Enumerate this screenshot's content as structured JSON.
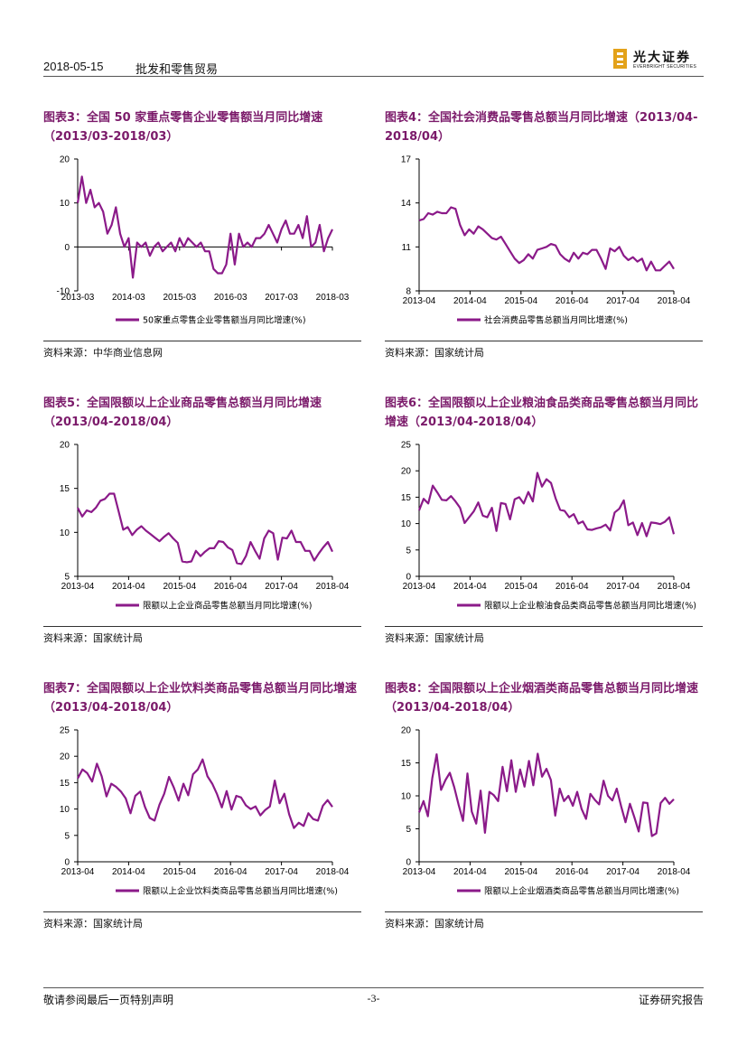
{
  "header": {
    "date": "2018-05-15",
    "sector": "批发和零售贸易",
    "brand_cn": "光大证券",
    "brand_en": "EVERBRIGHT SECURITIES"
  },
  "footer": {
    "disclaimer": "敬请参阅最后一页特别声明",
    "page": "-3-",
    "doc_type": "证券研究报告"
  },
  "colors": {
    "line": "#8b1a89",
    "title": "#7b1a6a",
    "logo_gold": "#e3a21a"
  },
  "figures": [
    {
      "title": "图表3：全国 50 家重点零售企业零售额当月同比增速（2013/03-2018/03）",
      "source": "资料来源：中华商业信息网",
      "chart_data": {
        "type": "line",
        "series_name": "50家重点零售企业零售额当月同比增速(%)",
        "ylim": [
          -10,
          20
        ],
        "yticks": [
          "-10",
          "0",
          "10",
          "20"
        ],
        "xticks": [
          "2013-03",
          "2014-03",
          "2015-03",
          "2016-03",
          "2017-03",
          "2018-03"
        ],
        "values": [
          10,
          16,
          10,
          13,
          9,
          10,
          8,
          3,
          5,
          9,
          3,
          0,
          2,
          -7,
          1,
          0,
          1,
          -2,
          0,
          1,
          -1,
          0,
          1,
          -1,
          2,
          0,
          2,
          1,
          0,
          1,
          -1,
          -1,
          -5,
          -6,
          -6,
          -4,
          3,
          -4,
          3,
          0,
          1,
          0,
          2,
          2,
          3,
          5,
          3,
          1,
          4,
          6,
          3,
          3,
          5,
          2,
          7,
          0,
          1,
          5,
          -1,
          2,
          4
        ]
      }
    },
    {
      "title": "图表4：全国社会消费品零售总额当月同比增速（2013/04-2018/04）",
      "source": "资料来源：国家统计局",
      "chart_data": {
        "type": "line",
        "series_name": "社会消费品零售总额当月同比增速(%)",
        "ylim": [
          8,
          17
        ],
        "yticks": [
          "8",
          "11",
          "14",
          "17"
        ],
        "xticks": [
          "2013-04",
          "2014-04",
          "2015-04",
          "2016-04",
          "2017-04",
          "2018-04"
        ],
        "values": [
          12.8,
          12.9,
          13.3,
          13.2,
          13.4,
          13.3,
          13.3,
          13.7,
          13.6,
          12.5,
          11.8,
          12.2,
          11.9,
          12.4,
          12.2,
          11.9,
          11.6,
          11.5,
          11.7,
          11.2,
          10.7,
          10.2,
          9.9,
          10.1,
          10.5,
          10.2,
          10.8,
          10.9,
          11.0,
          11.2,
          11.1,
          10.5,
          10.2,
          10.0,
          10.6,
          10.2,
          10.6,
          10.5,
          10.8,
          10.8,
          10.2,
          9.5,
          10.9,
          10.7,
          11.0,
          10.4,
          10.1,
          10.3,
          10.0,
          10.2,
          9.4,
          10.0,
          9.4,
          9.4,
          9.7,
          10.0,
          9.5
        ]
      }
    },
    {
      "title": "图表5：全国限额以上企业商品零售总额当月同比增速（2013/04-2018/04）",
      "source": "资料来源：国家统计局",
      "chart_data": {
        "type": "line",
        "series_name": "限额以上企业商品零售总额当月同比增速(%)",
        "ylim": [
          5,
          20
        ],
        "yticks": [
          "5",
          "10",
          "15",
          "20"
        ],
        "xticks": [
          "2013-04",
          "2014-04",
          "2015-04",
          "2016-04",
          "2017-04",
          "2018-04"
        ],
        "values": [
          12.8,
          11.8,
          12.5,
          12.3,
          12.8,
          13.6,
          13.8,
          14.4,
          14.4,
          12.4,
          10.3,
          10.6,
          9.7,
          10.3,
          10.7,
          10.2,
          9.8,
          9.4,
          9.0,
          9.5,
          9.9,
          9.3,
          8.8,
          6.7,
          6.6,
          6.7,
          7.9,
          7.3,
          7.8,
          8.2,
          8.2,
          9.0,
          8.9,
          8.3,
          8.0,
          6.5,
          6.4,
          7.3,
          8.9,
          7.9,
          7.0,
          9.3,
          10.2,
          9.9,
          6.9,
          9.4,
          9.3,
          10.2,
          8.9,
          8.9,
          7.9,
          7.9,
          6.8,
          7.6,
          8.3,
          8.9,
          7.8
        ]
      }
    },
    {
      "title": "图表6：全国限额以上企业粮油食品类商品零售总额当月同比增速（2013/04-2018/04）",
      "source": "资料来源：国家统计局",
      "chart_data": {
        "type": "line",
        "series_name": "限额以上企业粮油食品类商品零售总额当月同比增速(%)",
        "ylim": [
          0,
          25
        ],
        "yticks": [
          "0",
          "5",
          "10",
          "15",
          "20",
          "25"
        ],
        "xticks": [
          "2013-04",
          "2014-04",
          "2015-04",
          "2016-04",
          "2017-04",
          "2018-04"
        ],
        "values": [
          12.5,
          14.7,
          13.8,
          17.2,
          15.9,
          14.5,
          14.4,
          15.2,
          14.2,
          13.0,
          10.1,
          11.2,
          12.3,
          14.0,
          11.5,
          11.2,
          13.0,
          8.6,
          13.9,
          13.7,
          10.8,
          14.6,
          15.0,
          13.8,
          16.0,
          14.2,
          19.6,
          17.0,
          18.4,
          17.7,
          14.8,
          12.6,
          12.4,
          11.2,
          11.8,
          10.0,
          10.4,
          8.9,
          8.8,
          9.1,
          9.3,
          9.8,
          8.7,
          12.1,
          12.8,
          14.4,
          9.7,
          10.2,
          7.8,
          10.1,
          7.6,
          10.2,
          10.1,
          9.9,
          10.3,
          11.2,
          8.0
        ]
      }
    },
    {
      "title": "图表7：全国限额以上企业饮料类商品零售总额当月同比增速（2013/04-2018/04）",
      "source": "资料来源：国家统计局",
      "chart_data": {
        "type": "line",
        "series_name": "限额以上企业饮料类商品零售总额当月同比增速(%)",
        "ylim": [
          0,
          25
        ],
        "yticks": [
          "0",
          "5",
          "10",
          "15",
          "20",
          "25"
        ],
        "xticks": [
          "2013-04",
          "2014-04",
          "2015-04",
          "2016-04",
          "2017-04",
          "2018-04"
        ],
        "values": [
          15.8,
          17.5,
          16.8,
          15.2,
          18.6,
          16.2,
          12.4,
          14.8,
          14.2,
          13.3,
          12.0,
          9.2,
          12.5,
          13.3,
          10.4,
          8.3,
          7.8,
          10.8,
          12.9,
          16.1,
          14.1,
          11.6,
          14.8,
          12.6,
          16.6,
          17.5,
          19.4,
          16.2,
          14.8,
          12.8,
          10.3,
          13.4,
          9.9,
          12.5,
          12.2,
          10.7,
          10.0,
          10.5,
          8.8,
          9.8,
          10.5,
          15.4,
          11.1,
          12.9,
          9.0,
          6.4,
          7.4,
          6.8,
          9.2,
          8.1,
          7.8,
          10.6,
          11.7,
          10.4
        ]
      }
    },
    {
      "title": "图表8：全国限额以上企业烟酒类商品零售总额当月同比增速（2013/04-2018/04）",
      "source": "资料来源：国家统计局",
      "chart_data": {
        "type": "line",
        "series_name": "限额以上企业烟酒类商品零售总额当月同比增速(%)",
        "ylim": [
          0,
          20
        ],
        "yticks": [
          "0",
          "5",
          "10",
          "15",
          "20"
        ],
        "xticks": [
          "2013-04",
          "2014-04",
          "2015-04",
          "2016-04",
          "2017-04",
          "2018-04"
        ],
        "values": [
          7.5,
          9.2,
          6.9,
          12.7,
          16.3,
          10.9,
          12.4,
          13.5,
          11.3,
          8.6,
          6.2,
          13.4,
          7.6,
          5.8,
          10.8,
          4.4,
          10.6,
          10.1,
          9.2,
          14.4,
          10.7,
          15.4,
          10.6,
          14.0,
          11.4,
          15.3,
          11.6,
          16.4,
          12.9,
          14.1,
          12.4,
          7.0,
          11.1,
          9.2,
          10.0,
          8.5,
          10.6,
          8.0,
          6.5,
          10.3,
          9.4,
          8.7,
          12.3,
          10.0,
          9.3,
          11.1,
          8.4,
          6.0,
          8.8,
          6.8,
          4.6,
          9.0,
          8.9,
          3.9,
          4.3,
          8.9,
          9.7,
          8.8,
          9.5
        ]
      }
    }
  ]
}
